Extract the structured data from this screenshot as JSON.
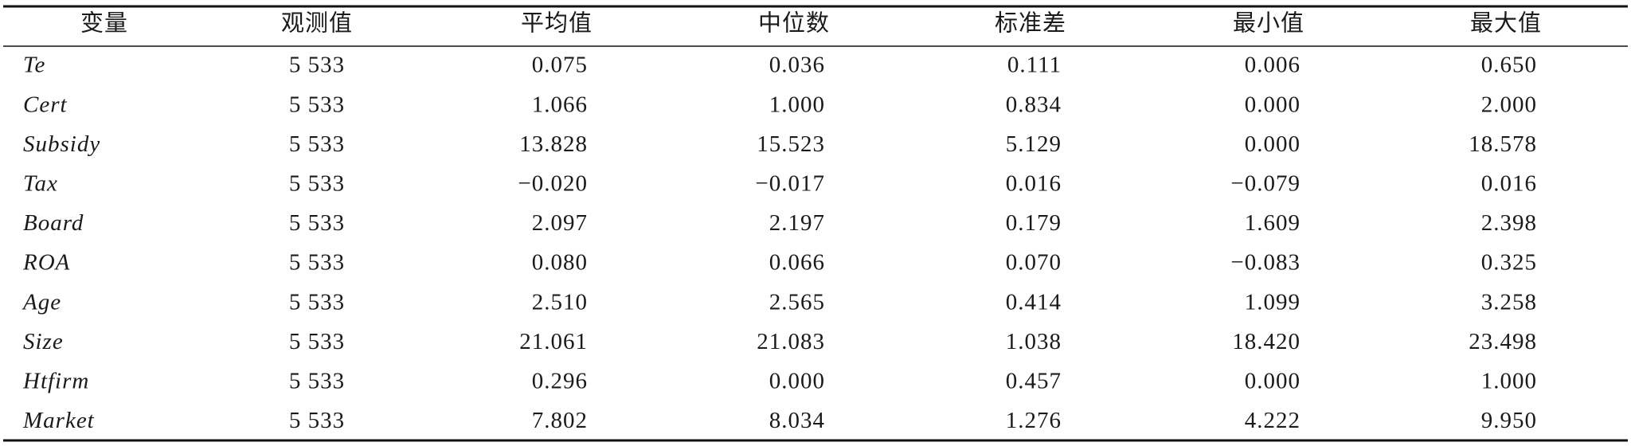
{
  "table": {
    "header": [
      "变量",
      "观测值",
      "平均值",
      "中位数",
      "标准差",
      "最小值",
      "最大值"
    ],
    "rows": [
      [
        "Te",
        "5 533",
        "0.075",
        "0.036",
        "0.111",
        "0.006",
        "0.650"
      ],
      [
        "Cert",
        "5 533",
        "1.066",
        "1.000",
        "0.834",
        "0.000",
        "2.000"
      ],
      [
        "Subsidy",
        "5 533",
        "13.828",
        "15.523",
        "5.129",
        "0.000",
        "18.578"
      ],
      [
        "Tax",
        "5 533",
        "−0.020",
        "−0.017",
        "0.016",
        "−0.079",
        "0.016"
      ],
      [
        "Board",
        "5 533",
        "2.097",
        "2.197",
        "0.179",
        "1.609",
        "2.398"
      ],
      [
        "ROA",
        "5 533",
        "0.080",
        "0.066",
        "0.070",
        "−0.083",
        "0.325"
      ],
      [
        "Age",
        "5 533",
        "2.510",
        "2.565",
        "0.414",
        "1.099",
        "3.258"
      ],
      [
        "Size",
        "5 533",
        "21.061",
        "21.083",
        "1.038",
        "18.420",
        "23.498"
      ],
      [
        "Htfirm",
        "5 533",
        "0.296",
        "0.000",
        "0.457",
        "0.000",
        "1.000"
      ],
      [
        "Market",
        "5 533",
        "7.802",
        "8.034",
        "1.276",
        "4.222",
        "9.950"
      ]
    ]
  }
}
